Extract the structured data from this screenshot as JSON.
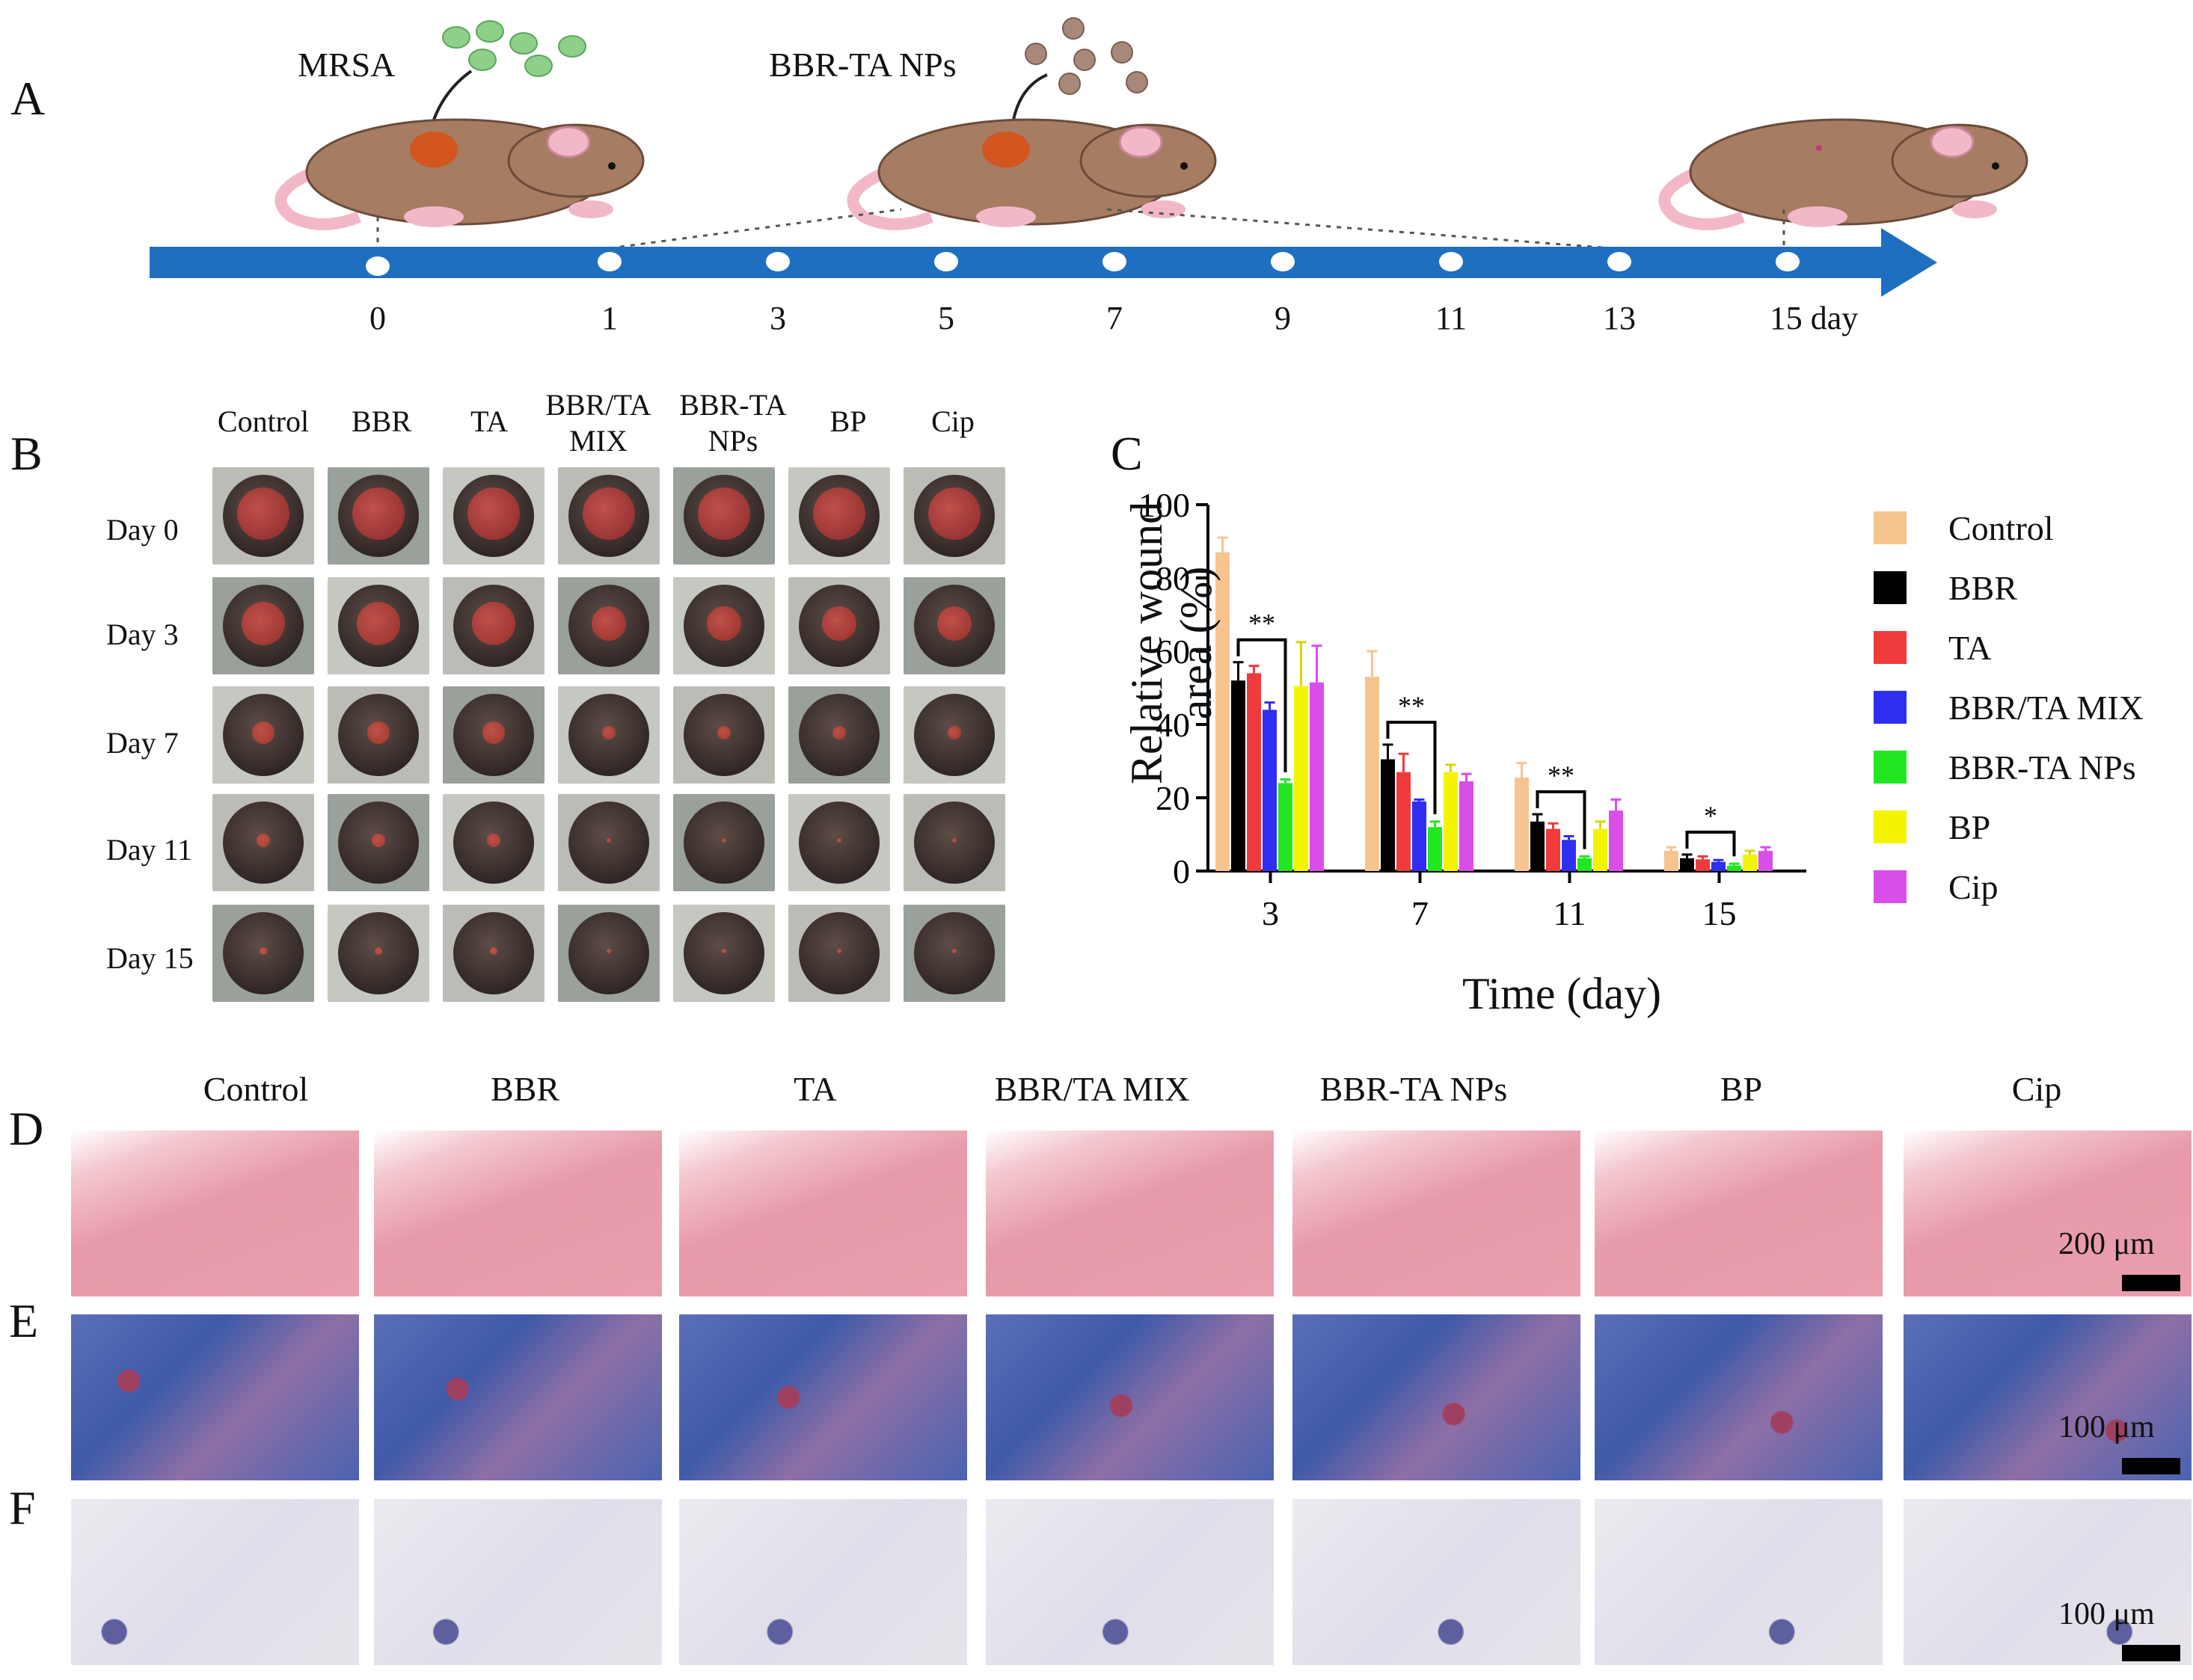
{
  "panels": {
    "A": "A",
    "B": "B",
    "C": "C",
    "D": "D",
    "E": "E",
    "F": "F"
  },
  "timeline": {
    "mrsa_label": "MRSA",
    "nps_label": "BBR-TA NPs",
    "days": [
      "0",
      "1",
      "3",
      "5",
      "7",
      "9",
      "11",
      "13",
      "15 day"
    ],
    "arrow_color": "#1f6fc0"
  },
  "photo_grid": {
    "columns": [
      "Control",
      "BBR",
      "TA",
      "BBR/TA\nMIX",
      "BBR-TA\nNPs",
      "BP",
      "Cip"
    ],
    "rows": [
      "Day 0",
      "Day 3",
      "Day 7",
      "Day 11",
      "Day 15"
    ]
  },
  "chart_data": {
    "type": "bar",
    "title": "",
    "xlabel": "Time (day)",
    "ylabel_line1": "Relative wound",
    "ylabel_line2": "area (%)",
    "ylim": [
      0,
      100
    ],
    "yticks": [
      "0",
      "20",
      "40",
      "60",
      "80",
      "100"
    ],
    "categories": [
      "3",
      "7",
      "11",
      "15"
    ],
    "series": [
      {
        "name": "Control",
        "color": "#f6c48f",
        "values": [
          87,
          53,
          25.5,
          5.5
        ],
        "errors": [
          4,
          7,
          4,
          1
        ]
      },
      {
        "name": "BBR",
        "color": "#000000",
        "values": [
          52,
          30.5,
          13.5,
          3.5
        ],
        "errors": [
          5,
          4,
          2,
          1
        ]
      },
      {
        "name": "TA",
        "color": "#ef3b3b",
        "values": [
          54,
          27,
          11.5,
          3.2
        ],
        "errors": [
          2,
          5,
          1.5,
          0.8
        ]
      },
      {
        "name": "BBR/TA MIX",
        "color": "#2f2ff2",
        "values": [
          44,
          19,
          8.5,
          2.5
        ],
        "errors": [
          2,
          0.5,
          1,
          0.5
        ]
      },
      {
        "name": "BBR-TA NPs",
        "color": "#22e622",
        "values": [
          24,
          12,
          3.5,
          1.5
        ],
        "errors": [
          1,
          1.5,
          0.5,
          0.5
        ]
      },
      {
        "name": "BP",
        "color": "#f4f400",
        "values": [
          50.5,
          27,
          11.5,
          4.5
        ],
        "errors": [
          12,
          2,
          2,
          1
        ]
      },
      {
        "name": "Cip",
        "color": "#d94ee8",
        "values": [
          51.5,
          24.5,
          16.5,
          5.5
        ],
        "errors": [
          10,
          2,
          3,
          1
        ]
      }
    ],
    "significance": [
      {
        "category": "3",
        "label": "**"
      },
      {
        "category": "7",
        "label": "**"
      },
      {
        "category": "11",
        "label": "**"
      },
      {
        "category": "15",
        "label": "*"
      }
    ],
    "legend_position": "right"
  },
  "histology": {
    "columns": [
      "Control",
      "BBR",
      "TA",
      "BBR/TA MIX",
      "BBR-TA NPs",
      "BP",
      "Cip"
    ],
    "scale_D": "200 μm",
    "scale_E": "100 μm",
    "scale_F": "100 μm"
  }
}
